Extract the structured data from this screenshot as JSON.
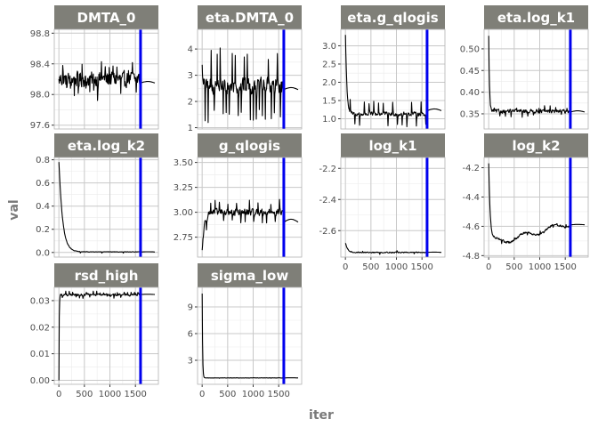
{
  "chart_data": {
    "type": "line",
    "xlabel": "iter",
    "ylabel": "val",
    "x_ticks": [
      0,
      500,
      1000,
      1500
    ],
    "x_tick_labels": [
      "0",
      "500",
      "1000",
      "1500"
    ],
    "xlim": [
      -90,
      1950
    ],
    "marker_line_iter": 1600,
    "colors": {
      "trace": "#000000",
      "marker_line": "#0000ee",
      "strip_background": "#7f7f78",
      "strip_text": "#ffffff",
      "grid_major": "#c8c8c8",
      "grid_minor": "#ebebeb",
      "panel_border": "#b3b3b3"
    },
    "grid": true,
    "panels": [
      {
        "name": "DMTA_0",
        "ylim": [
          97.55,
          98.85
        ],
        "y_ticks": [
          97.6,
          98.0,
          98.4,
          98.8
        ],
        "y_tick_labels": [
          "97.6",
          "98.0",
          "98.4",
          "98.8"
        ],
        "show_x_ticks": false,
        "trace": {
          "kind": "noisy",
          "start": 98.2,
          "level": 98.2,
          "noise": 0.18,
          "spike_every": 9,
          "spike": 0.2,
          "smooth_level": 98.15,
          "smooth_amp": 0.02
        }
      },
      {
        "name": "eta.DMTA_0",
        "ylim": [
          0.95,
          4.75
        ],
        "y_ticks": [
          1,
          2,
          3,
          4
        ],
        "y_tick_labels": [
          "1",
          "2",
          "3",
          "4"
        ],
        "show_x_ticks": false,
        "trace": {
          "kind": "noisy",
          "start": 3.4,
          "level": 2.6,
          "noise": 0.55,
          "spike_every": 7,
          "spike": 1.2,
          "smooth_level": 2.45,
          "smooth_amp": 0.08
        }
      },
      {
        "name": "eta.g_qlogis",
        "ylim": [
          0.72,
          3.45
        ],
        "y_ticks": [
          1.0,
          1.5,
          2.0,
          2.5,
          3.0
        ],
        "y_tick_labels": [
          "1.0",
          "1.5",
          "2.0",
          "2.5",
          "3.0"
        ],
        "show_x_ticks": false,
        "trace": {
          "kind": "decay",
          "start": 3.3,
          "level": 1.13,
          "tau": 25,
          "noise": 0.1,
          "spike_every": 11,
          "spike": 0.3,
          "smooth_level": 1.22,
          "smooth_amp": 0.05
        }
      },
      {
        "name": "eta.log_k1",
        "ylim": [
          0.315,
          0.545
        ],
        "y_ticks": [
          0.35,
          0.4,
          0.45,
          0.5
        ],
        "y_tick_labels": [
          "0.35",
          "0.40",
          "0.45",
          "0.50"
        ],
        "show_x_ticks": false,
        "trace": {
          "kind": "decay",
          "start": 0.53,
          "level": 0.356,
          "tau": 12,
          "noise": 0.008,
          "spike_every": 13,
          "spike": 0.01,
          "smooth_level": 0.354,
          "smooth_amp": 0.003
        }
      },
      {
        "name": "eta.log_k2",
        "ylim": [
          -0.04,
          0.82
        ],
        "y_ticks": [
          0.0,
          0.2,
          0.4,
          0.6,
          0.8
        ],
        "y_tick_labels": [
          "0.0",
          "0.2",
          "0.4",
          "0.6",
          "0.8"
        ],
        "show_x_ticks": false,
        "trace": {
          "kind": "decay",
          "start": 0.78,
          "level": 0.005,
          "tau": 70,
          "noise": 0.004,
          "spike_every": 50,
          "spike": 0.01,
          "smooth_level": 0.004,
          "smooth_amp": 0.002
        }
      },
      {
        "name": "g_qlogis",
        "ylim": [
          2.55,
          3.55
        ],
        "y_ticks": [
          2.75,
          3.0,
          3.25,
          3.5
        ],
        "y_tick_labels": [
          "2.75",
          "3.00",
          "3.25",
          "3.50"
        ],
        "show_x_ticks": false,
        "trace": {
          "kind": "rise",
          "start": 2.62,
          "level": 3.0,
          "tau": 40,
          "noise": 0.06,
          "spike_every": 10,
          "spike": 0.1,
          "smooth_level": 2.9,
          "smooth_amp": 0.03
        }
      },
      {
        "name": "log_k1",
        "ylim": [
          -2.77,
          -2.13
        ],
        "y_ticks": [
          -2.6,
          -2.4,
          -2.2
        ],
        "y_tick_labels": [
          "-2.6",
          "-2.4",
          "-2.2"
        ],
        "show_x_ticks": true,
        "trace": {
          "kind": "decay",
          "start": -2.68,
          "level": -2.74,
          "tau": 40,
          "noise": 0.006,
          "spike_every": 40,
          "spike": 0.01,
          "smooth_level": -2.74,
          "smooth_amp": 0.002
        }
      },
      {
        "name": "log_k2",
        "ylim": [
          -4.81,
          -4.13
        ],
        "y_ticks": [
          -4.8,
          -4.6,
          -4.4,
          -4.2
        ],
        "y_tick_labels": [
          "-4.8",
          "-4.6",
          "-4.4",
          "-4.2"
        ],
        "show_x_ticks": true,
        "trace": {
          "kind": "wander",
          "start": -4.17,
          "level": -4.7,
          "tau": 25,
          "noise": 0.012,
          "spike_every": 30,
          "spike": 0.02,
          "smooth_level": -4.59,
          "smooth_amp": 0.003,
          "drift_to": -4.58
        }
      },
      {
        "name": "rsd_high",
        "ylim": [
          -0.0015,
          0.035
        ],
        "y_ticks": [
          0.0,
          0.01,
          0.02,
          0.03
        ],
        "y_tick_labels": [
          "0.00",
          "0.01",
          "0.02",
          "0.03"
        ],
        "show_x_ticks": true,
        "trace": {
          "kind": "jump",
          "start": 0.0,
          "level": 0.0322,
          "tau": 4,
          "noise": 0.0008,
          "spike_every": 8,
          "spike": 0.001,
          "smooth_level": 0.0323,
          "smooth_amp": 0.0001
        }
      },
      {
        "name": "sigma_low",
        "ylim": [
          0.3,
          11.2
        ],
        "y_ticks": [
          3,
          6,
          9
        ],
        "y_tick_labels": [
          "3",
          "6",
          "9"
        ],
        "show_x_ticks": true,
        "trace": {
          "kind": "decay",
          "start": 10.5,
          "level": 1.02,
          "tau": 6,
          "noise": 0.02,
          "spike_every": 40,
          "spike": 0.03,
          "smooth_level": 1.02,
          "smooth_amp": 0.01
        }
      }
    ]
  }
}
